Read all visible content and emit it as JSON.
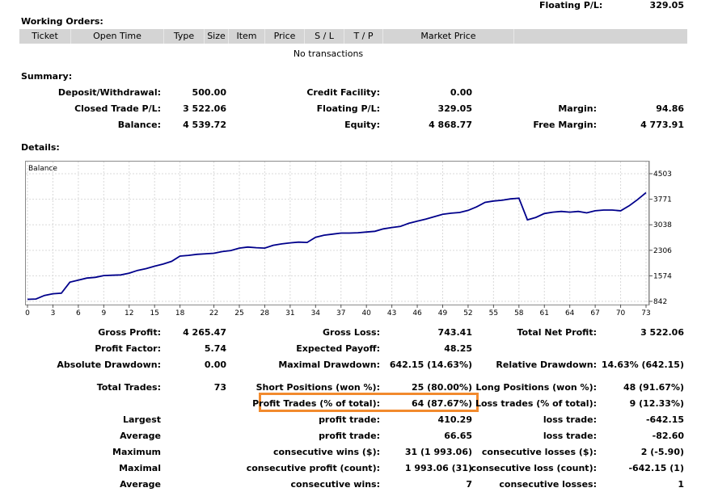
{
  "top": {
    "floating_label": "Floating P/L:",
    "floating_value": "329.05"
  },
  "working_orders": {
    "title": "Working Orders:",
    "columns": [
      "Ticket",
      "Open Time",
      "Type",
      "Size",
      "Item",
      "Price",
      "S / L",
      "T / P",
      "Market Price"
    ],
    "empty_text": "No transactions"
  },
  "summary": {
    "title": "Summary:",
    "deposit_label": "Deposit/Withdrawal:",
    "deposit_value": "500.00",
    "credit_label": "Credit Facility:",
    "credit_value": "0.00",
    "closed_label": "Closed Trade P/L:",
    "closed_value": "3 522.06",
    "floating_label": "Floating P/L:",
    "floating_value": "329.05",
    "margin_label": "Margin:",
    "margin_value": "94.86",
    "balance_label": "Balance:",
    "balance_value": "4 539.72",
    "equity_label": "Equity:",
    "equity_value": "4 868.77",
    "free_margin_label": "Free Margin:",
    "free_margin_value": "4 773.91"
  },
  "details": {
    "title": "Details:"
  },
  "chart_data": {
    "type": "line",
    "title": "",
    "legend": "Balance",
    "series": [
      {
        "name": "Balance",
        "color": "#00008b",
        "values": [
          []
        ]
      }
    ],
    "x_ticks": [
      "0",
      "3",
      "6",
      "9",
      "12",
      "15",
      "18",
      "22",
      "25",
      "28",
      "31",
      "34",
      "37",
      "40",
      "43",
      "46",
      "49",
      "52",
      "55",
      "58",
      "61",
      "64",
      "67",
      "70",
      "73"
    ],
    "y_ticks": [
      "4503",
      "3771",
      "3038",
      "2306",
      "1574",
      "842"
    ],
    "xlim": [
      0,
      73
    ],
    "ylim": [
      842,
      4503
    ]
  },
  "stats": {
    "gross_profit_label": "Gross Profit:",
    "gross_profit_value": "4 265.47",
    "gross_loss_label": "Gross Loss:",
    "gross_loss_value": "743.41",
    "total_net_label": "Total Net Profit:",
    "total_net_value": "3 522.06",
    "profit_factor_label": "Profit Factor:",
    "profit_factor_value": "5.74",
    "expected_label": "Expected Payoff:",
    "expected_value": "48.25",
    "abs_dd_label": "Absolute Drawdown:",
    "abs_dd_value": "0.00",
    "max_dd_label": "Maximal Drawdown:",
    "max_dd_value": "642.15 (14.63%)",
    "rel_dd_label": "Relative Drawdown:",
    "rel_dd_value": "14.63% (642.15)",
    "total_trades_label": "Total Trades:",
    "total_trades_value": "73",
    "short_label": "Short Positions (won %):",
    "short_value": "25 (80.00%)",
    "long_label": "Long Positions (won %):",
    "long_value": "48 (91.67%)",
    "profit_trades_label": "Profit Trades (% of total):",
    "profit_trades_value": "64 (87.67%)",
    "loss_trades_label": "Loss trades (% of total):",
    "loss_trades_value": "9 (12.33%)",
    "largest_label": "Largest",
    "largest_profit_label": "profit trade:",
    "largest_profit_value": "410.29",
    "largest_loss_label": "loss trade:",
    "largest_loss_value": "-642.15",
    "average_label": "Average",
    "avg_profit_label": "profit trade:",
    "avg_profit_value": "66.65",
    "avg_loss_label": "loss trade:",
    "avg_loss_value": "-82.60",
    "maximum_label": "Maximum",
    "max_cons_wins_label": "consecutive wins ($):",
    "max_cons_wins_value": "31 (1 993.06)",
    "max_cons_losses_label": "consecutive losses ($):",
    "max_cons_losses_value": "2 (-5.90)",
    "maximal_label": "Maximal",
    "maximal_profit_label": "consecutive profit (count):",
    "maximal_profit_value": "1 993.06 (31)",
    "maximal_loss_label": "consecutive loss (count):",
    "maximal_loss_value": "-642.15 (1)",
    "average2_label": "Average",
    "avg_cons_wins_label": "consecutive wins:",
    "avg_cons_wins_value": "7",
    "avg_cons_losses_label": "consecutive losses:",
    "avg_cons_losses_value": "1"
  }
}
